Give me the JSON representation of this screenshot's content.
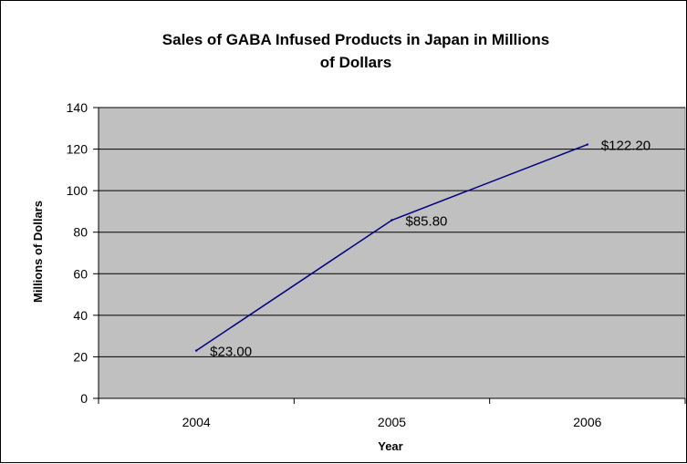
{
  "chart_data": {
    "type": "line",
    "title_lines": [
      "Sales of GABA Infused Products in Japan in Millions",
      "of Dollars"
    ],
    "xlabel": "Year",
    "ylabel": "Millions of Dollars",
    "categories": [
      "2004",
      "2005",
      "2006"
    ],
    "series": [
      {
        "values": [
          23.0,
          85.8,
          122.2
        ],
        "data_labels": [
          "$23.00",
          "$85.80",
          "$122.20"
        ],
        "color": "#000080"
      }
    ],
    "ylim": [
      0,
      140
    ],
    "yticks": [
      0,
      20,
      40,
      60,
      80,
      100,
      120,
      140
    ],
    "plot_background": "#c0c0c0",
    "grid": true,
    "legend": "none"
  }
}
